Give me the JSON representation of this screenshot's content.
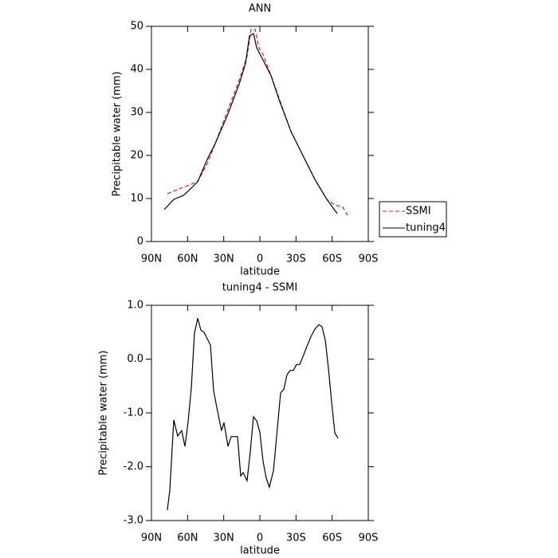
{
  "chart_data": [
    {
      "type": "line",
      "title": "ANN",
      "xlabel": "latitude",
      "ylabel": "Precipitable water (mm)",
      "xlim": [
        90,
        -90
      ],
      "ylim": [
        0,
        50
      ],
      "xticks": [
        {
          "value": 90,
          "label": "90N"
        },
        {
          "value": 60,
          "label": "60N"
        },
        {
          "value": 30,
          "label": "30N"
        },
        0,
        {
          "value": -30,
          "label": "30S"
        },
        {
          "value": -60,
          "label": "60S"
        },
        {
          "value": -90,
          "label": "90S"
        }
      ],
      "yticks": [
        0,
        10,
        20,
        30,
        40,
        50
      ],
      "legend": "right",
      "series": [
        {
          "name": "SSMI",
          "color": "#e8161c",
          "linestyle": "dashed",
          "x": [
            76.8,
            71.5,
            63.5,
            51.6,
            43.7,
            37,
            27,
            17,
            10.6,
            7.3,
            4,
            0.7,
            -2.6,
            -9.3,
            -25.8,
            -45.7,
            -55.6,
            -62.2,
            -68.8,
            -72.8
          ],
          "values": [
            11.1,
            11.7,
            12.6,
            13.9,
            18.1,
            22.8,
            30.2,
            37.6,
            43.1,
            49.3,
            49.3,
            45,
            43.5,
            38.5,
            25.6,
            14.4,
            9.8,
            8.5,
            8,
            6.1
          ]
        },
        {
          "name": "tuning4",
          "color": "#000000",
          "linestyle": "solid",
          "x": [
            79.4,
            71.5,
            63.5,
            59.5,
            51.6,
            43.7,
            37,
            27,
            17,
            12,
            8.6,
            5.3,
            2.6,
            -2.6,
            -9.3,
            -15.9,
            -25.8,
            -35.7,
            -45.7,
            -55.6,
            -64.2
          ],
          "values": [
            7.4,
            9.8,
            10.7,
            11.7,
            13.9,
            19.1,
            22.8,
            29.3,
            36.7,
            41.3,
            47.8,
            48.3,
            45,
            42.2,
            38.5,
            33,
            25.6,
            20,
            14.4,
            9.8,
            6.5
          ]
        }
      ]
    },
    {
      "type": "line",
      "title": "tuning4 - SSMI",
      "xlabel": "latitude",
      "ylabel": "Precipitable water (mm)",
      "xlim": [
        90,
        -90
      ],
      "ylim": [
        -3,
        1
      ],
      "xticks": [
        {
          "value": 90,
          "label": "90N"
        },
        {
          "value": 60,
          "label": "60N"
        },
        {
          "value": 30,
          "label": "30N"
        },
        0,
        {
          "value": -30,
          "label": "30S"
        },
        {
          "value": -60,
          "label": "60S"
        },
        {
          "value": -90,
          "label": "90S"
        }
      ],
      "yticks": [
        {
          "value": 1,
          "label": "1.0"
        },
        {
          "value": 0,
          "label": "0.0"
        },
        {
          "value": -1,
          "label": "-1.0"
        },
        {
          "value": -2,
          "label": "-2.0"
        },
        {
          "value": -3,
          "label": "-3.0"
        }
      ],
      "series": [
        {
          "color": "#000000",
          "linestyle": "solid",
          "x": [
            76.8,
            74.8,
            71.5,
            68.2,
            64.9,
            62.2,
            59.6,
            56.9,
            54.3,
            51.6,
            49,
            46.3,
            41,
            38.4,
            35.7,
            31.8,
            29.8,
            26.5,
            23.8,
            18.5,
            15.9,
            13.9,
            10.6,
            7.9,
            5.3,
            2.6,
            0,
            -2.6,
            -5.3,
            -7.9,
            -11.3,
            -13.9,
            -17.2,
            -19.9,
            -22.5,
            -25.2,
            -27.8,
            -30.4,
            -33.1,
            -35.7,
            -39.1,
            -42.4,
            -45.7,
            -49,
            -51.6,
            -54.3,
            -56.9,
            -59.6,
            -62.2,
            -64.9
          ],
          "values": [
            -2.81,
            -2.44,
            -1.13,
            -1.43,
            -1.33,
            -1.62,
            -1.18,
            -0.54,
            0.48,
            0.76,
            0.54,
            0.5,
            0.26,
            -0.59,
            -0.91,
            -1.33,
            -1.18,
            -1.62,
            -1.44,
            -1.44,
            -2.17,
            -2.11,
            -2.26,
            -1.7,
            -1.07,
            -1.15,
            -1.36,
            -1.89,
            -2.21,
            -2.38,
            -2.07,
            -1.44,
            -0.63,
            -0.56,
            -0.29,
            -0.21,
            -0.21,
            -0.1,
            -0.1,
            0.04,
            0.24,
            0.42,
            0.56,
            0.64,
            0.6,
            0.35,
            -0.17,
            -0.81,
            -1.37,
            -1.47
          ]
        }
      ]
    }
  ]
}
